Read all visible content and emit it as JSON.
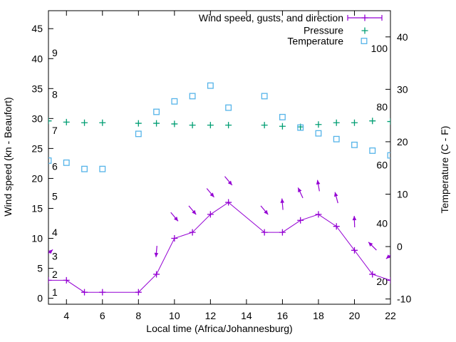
{
  "chart_data": {
    "type": "line",
    "title": "",
    "xlabel": "Local time (Africa/Johannesburg)",
    "ylabel_left": "Wind speed (kn - Beaufort)",
    "ylabel_right": "Temperature (C - F)",
    "x_range": [
      3,
      22
    ],
    "x_ticks": [
      4,
      6,
      8,
      10,
      12,
      14,
      16,
      18,
      20,
      22
    ],
    "grid": false,
    "legend_position": "top-right-inside",
    "left_axis": {
      "unit": "kn",
      "range": [
        -1,
        48
      ],
      "ticks": [
        0,
        5,
        10,
        15,
        20,
        25,
        30,
        35,
        40,
        45
      ],
      "beaufort_labels": [
        {
          "label": "1",
          "kn": 1
        },
        {
          "label": "2",
          "kn": 4
        },
        {
          "label": "3",
          "kn": 7
        },
        {
          "label": "4",
          "kn": 11
        },
        {
          "label": "5",
          "kn": 17
        },
        {
          "label": "6",
          "kn": 22
        },
        {
          "label": "7",
          "kn": 28
        },
        {
          "label": "8",
          "kn": 34
        },
        {
          "label": "9",
          "kn": 41
        }
      ]
    },
    "right_axis": {
      "unit": "C",
      "range": [
        -11,
        45
      ],
      "ticks": [
        -10,
        0,
        10,
        20,
        30,
        40
      ],
      "fahrenheit_labels": [
        {
          "label": "20",
          "f": 20
        },
        {
          "label": "40",
          "f": 40
        },
        {
          "label": "60",
          "f": 60
        },
        {
          "label": "80",
          "f": 80
        },
        {
          "label": "100",
          "f": 100
        }
      ]
    },
    "legend": [
      {
        "label": "Wind speed, gusts, and direction",
        "marker": "errorbar",
        "color": "#9400d3"
      },
      {
        "label": "Pressure",
        "marker": "plus",
        "color": "#009e73"
      },
      {
        "label": "Temperature",
        "marker": "square",
        "color": "#56b4e9"
      }
    ],
    "series": {
      "wind_speed": {
        "x": [
          3,
          4,
          5,
          6,
          8,
          9,
          10,
          11,
          12,
          13,
          15,
          16,
          17,
          18,
          19,
          20,
          21,
          22
        ],
        "kn": [
          3,
          3,
          1,
          1,
          1,
          4,
          10,
          11,
          14,
          16,
          11,
          11,
          13,
          14,
          12,
          8,
          4,
          3
        ]
      },
      "gusts": {
        "x": [
          3,
          9,
          10,
          11,
          12,
          13,
          15,
          16,
          17,
          18,
          19,
          20,
          21,
          22
        ],
        "kn": [
          7.5,
          7.8,
          13.6,
          14.7,
          17.6,
          19.6,
          14.7,
          15.7,
          17.6,
          18.8,
          16.8,
          12.8,
          8.7,
          7.2
        ],
        "angle_deg": [
          40,
          -95,
          -50,
          -50,
          -50,
          -50,
          -50,
          95,
          115,
          100,
          105,
          92,
          135,
          -140
        ]
      },
      "pressure": {
        "x": [
          3,
          4,
          5,
          6,
          8,
          9,
          10,
          11,
          12,
          13,
          15,
          16,
          17,
          18,
          19,
          20,
          21,
          22
        ],
        "y_on_left_axis": [
          29.6,
          29.4,
          29.3,
          29.3,
          29.2,
          29.2,
          29.1,
          28.9,
          28.9,
          28.9,
          28.9,
          28.7,
          28.6,
          29.0,
          29.3,
          29.3,
          29.6,
          29.5
        ]
      },
      "temperature_c": {
        "x": [
          3,
          4,
          5,
          6,
          8,
          9,
          10,
          11,
          12,
          13,
          15,
          16,
          17,
          18,
          19,
          20,
          21,
          22
        ],
        "c": [
          16.4,
          16.0,
          14.8,
          14.8,
          21.5,
          25.7,
          27.7,
          28.7,
          30.7,
          26.5,
          28.7,
          24.7,
          22.7,
          21.6,
          20.5,
          19.4,
          18.3,
          17.4
        ]
      }
    },
    "colors": {
      "wind": "#9400d3",
      "pressure": "#009e73",
      "temperature": "#56b4e9",
      "axis": "#000000",
      "background": "#ffffff"
    }
  }
}
